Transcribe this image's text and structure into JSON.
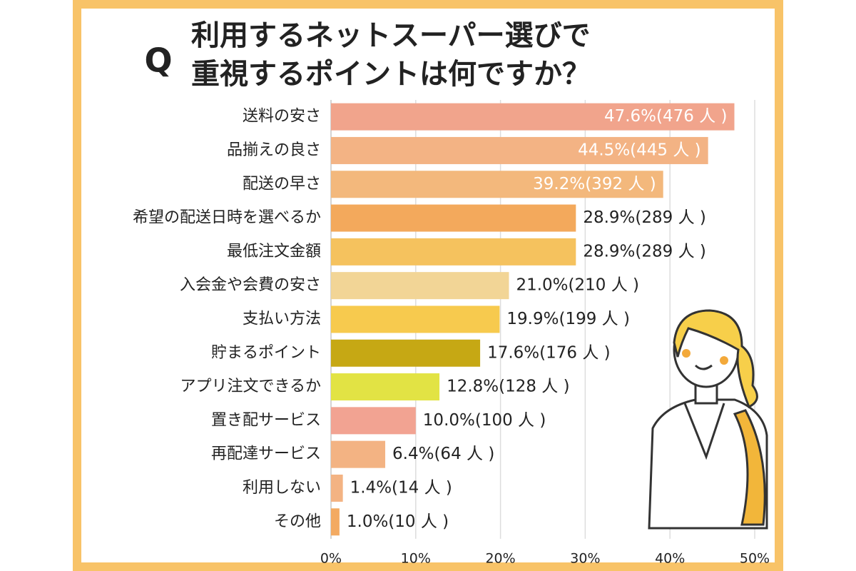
{
  "chart_data": {
    "type": "bar",
    "orientation": "horizontal",
    "title_marker": "Q",
    "title_lines": [
      "利用するネットスーパー選びで",
      "重視するポイントは何ですか？"
    ],
    "categories": [
      "送料の安さ",
      "品揃えの良さ",
      "配送の早さ",
      "希望の配送日時を選べるか",
      "最低注文金額",
      "入会金や会費の安さ",
      "支払い方法",
      "貯まるポイント",
      "アプリ注文できるか",
      "置き配サービス",
      "再配達サービス",
      "利用しない",
      "その他"
    ],
    "values": [
      47.6,
      44.5,
      39.2,
      28.9,
      28.9,
      21.0,
      19.9,
      17.6,
      12.8,
      10.0,
      6.4,
      1.4,
      1.0
    ],
    "value_labels": [
      "47.6%(476 人 )",
      "44.5%(445 人 )",
      "39.2%(392 人 )",
      "28.9%(289 人 )",
      "28.9%(289 人 )",
      "21.0%(210 人 )",
      "19.9%(199 人 )",
      "17.6%(176 人 )",
      "12.8%(128 人 )",
      "10.0%(100 人 )",
      "6.4%(64 人 )",
      "1.4%(14 人 )",
      "1.0%(10 人 )"
    ],
    "colors": [
      "#f1a48c",
      "#f3b384",
      "#f3b87c",
      "#f3a95c",
      "#f5c25e",
      "#f2d596",
      "#f7ca4e",
      "#c6a814",
      "#e2e344",
      "#f2a392",
      "#f3b383",
      "#f3b383",
      "#f3aa62"
    ],
    "xlim": [
      0,
      50
    ],
    "xticks": [
      {
        "value": 0,
        "label": "0%"
      },
      {
        "value": 10,
        "label": "10%"
      },
      {
        "value": 20,
        "label": "20%"
      },
      {
        "value": 30,
        "label": "30%"
      },
      {
        "value": 40,
        "label": "40%"
      },
      {
        "value": 50,
        "label": "50%"
      }
    ],
    "grid": true
  }
}
